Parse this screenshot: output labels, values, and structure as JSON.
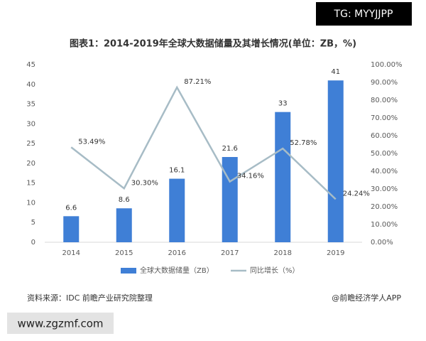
{
  "chart_data": {
    "type": "bar",
    "title": "图表1：2014-2019年全球大数据储量及其增长情况(单位：ZB，%)",
    "categories": [
      "2014",
      "2015",
      "2016",
      "2017",
      "2018",
      "2019"
    ],
    "series": [
      {
        "name": "全球大数据储量（ZB）",
        "type": "bar",
        "color": "#3f7fd6",
        "values": [
          6.6,
          8.6,
          16.1,
          21.6,
          33,
          41
        ]
      },
      {
        "name": "同比增长（%）",
        "type": "line",
        "axis": "y2",
        "color": "#a7bcc6",
        "values": [
          53.49,
          30.3,
          87.21,
          34.16,
          52.78,
          24.24
        ],
        "value_labels": [
          "53.49%",
          "30.30%",
          "87.21%",
          "34.16%",
          "52.78%",
          "24.24%"
        ]
      }
    ],
    "ylim": [
      0,
      45
    ],
    "yticks": [
      0,
      5,
      10,
      15,
      20,
      25,
      30,
      35,
      40,
      45
    ],
    "y2lim": [
      0,
      100
    ],
    "y2ticks": [
      {
        "value": 0,
        "label": "0.00%"
      },
      {
        "value": 10,
        "label": "10.00%"
      },
      {
        "value": 20,
        "label": "20.00%"
      },
      {
        "value": 30,
        "label": "30.00%"
      },
      {
        "value": 40,
        "label": "40.00%"
      },
      {
        "value": 50,
        "label": "50.00%"
      },
      {
        "value": 60,
        "label": "60.00%"
      },
      {
        "value": 70,
        "label": "70.00%"
      },
      {
        "value": 80,
        "label": "80.00%"
      },
      {
        "value": 90,
        "label": "90.00%"
      },
      {
        "value": 100,
        "label": "100.00%"
      }
    ],
    "grid": false,
    "legend": "bottom",
    "source": "资料来源：IDC 前瞻产业研究院整理",
    "credit": "@前瞻经济学人APP"
  },
  "watermarks": [
    "TG: MYYJJPP",
    "www.zgzmf.com"
  ]
}
